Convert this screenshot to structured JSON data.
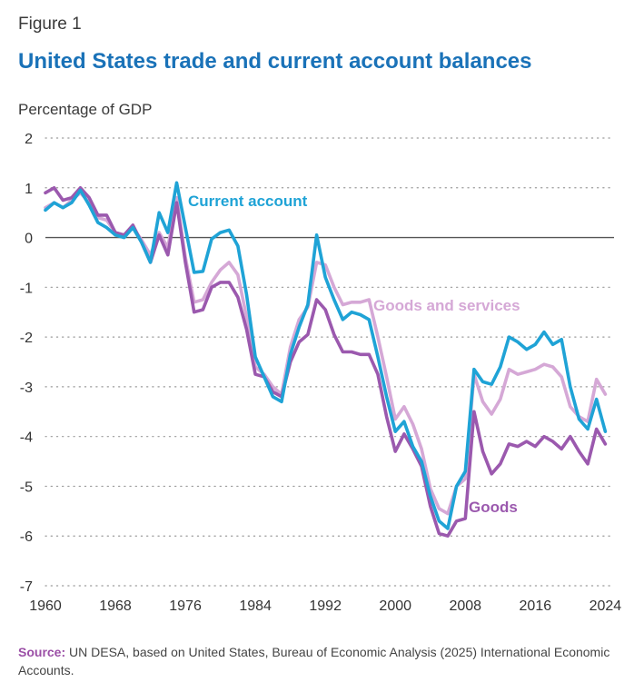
{
  "figure_label": "Figure 1",
  "title": "United States trade and current account balances",
  "unit_label": "Percentage of GDP",
  "source": {
    "key": "Source:",
    "text": " UN DESA, based on United States, Bureau of Economic Analysis (2025) International Economic Accounts."
  },
  "colors": {
    "current_account": "#1fa3d6",
    "goods_and_services": "#d5a8d6",
    "goods": "#9b59ae",
    "title": "#1a72b8",
    "zero_line": "#555555",
    "grid": "#9a9a9a"
  },
  "chart_data": {
    "type": "line",
    "xlim": [
      1960,
      2025
    ],
    "ylim": [
      -7,
      2
    ],
    "grid": "horizontal dotted",
    "x_ticks": [
      1960,
      1968,
      1976,
      1984,
      1992,
      2000,
      2008,
      2016,
      2024
    ],
    "y_ticks": [
      2,
      1,
      0,
      -1,
      -2,
      -3,
      -4,
      -5,
      -6,
      -7
    ],
    "series": [
      {
        "name": "Current account",
        "key": "current_account",
        "x": [
          1960,
          1961,
          1962,
          1963,
          1964,
          1965,
          1966,
          1967,
          1968,
          1969,
          1970,
          1971,
          1972,
          1973,
          1974,
          1975,
          1976,
          1977,
          1978,
          1979,
          1980,
          1981,
          1982,
          1983,
          1984,
          1985,
          1986,
          1987,
          1988,
          1989,
          1990,
          1991,
          1992,
          1993,
          1994,
          1995,
          1996,
          1997,
          1998,
          1999,
          2000,
          2001,
          2002,
          2003,
          2004,
          2005,
          2006,
          2007,
          2008,
          2009,
          2010,
          2011,
          2012,
          2013,
          2014,
          2015,
          2016,
          2017,
          2018,
          2019,
          2020,
          2021,
          2022,
          2023,
          2024
        ],
        "values": [
          0.55,
          0.7,
          0.6,
          0.7,
          0.95,
          0.65,
          0.3,
          0.2,
          0.05,
          0.0,
          0.2,
          -0.1,
          -0.5,
          0.5,
          0.1,
          1.1,
          0.2,
          -0.7,
          -0.68,
          -0.03,
          0.1,
          0.15,
          -0.17,
          -1.15,
          -2.4,
          -2.8,
          -3.2,
          -3.3,
          -2.35,
          -1.8,
          -1.35,
          0.05,
          -0.8,
          -1.25,
          -1.65,
          -1.5,
          -1.55,
          -1.65,
          -2.4,
          -3.2,
          -3.9,
          -3.7,
          -4.2,
          -4.5,
          -5.2,
          -5.7,
          -5.85,
          -5.0,
          -4.7,
          -2.65,
          -2.9,
          -2.95,
          -2.6,
          -2.0,
          -2.1,
          -2.25,
          -2.15,
          -1.9,
          -2.15,
          -2.05,
          -3.0,
          -3.65,
          -3.85,
          -3.25,
          -3.9
        ],
        "label_position": "upper-left, near 1976"
      },
      {
        "name": "Goods and services",
        "key": "goods_and_services",
        "x": [
          1960,
          1961,
          1962,
          1963,
          1964,
          1965,
          1966,
          1967,
          1968,
          1969,
          1970,
          1971,
          1972,
          1973,
          1974,
          1975,
          1976,
          1977,
          1978,
          1979,
          1980,
          1981,
          1982,
          1983,
          1984,
          1985,
          1986,
          1987,
          1988,
          1989,
          1990,
          1991,
          1992,
          1993,
          1994,
          1995,
          1996,
          1997,
          1998,
          1999,
          2000,
          2001,
          2002,
          2003,
          2004,
          2005,
          2006,
          2007,
          2008,
          2009,
          2010,
          2011,
          2012,
          2013,
          2014,
          2015,
          2016,
          2017,
          2018,
          2019,
          2020,
          2021,
          2022,
          2023,
          2024
        ],
        "values": [
          0.6,
          0.7,
          0.6,
          0.75,
          0.9,
          0.7,
          0.4,
          0.35,
          0.1,
          0.05,
          0.2,
          -0.05,
          -0.35,
          0.1,
          -0.2,
          0.8,
          -0.4,
          -1.3,
          -1.25,
          -0.9,
          -0.65,
          -0.5,
          -0.75,
          -1.6,
          -2.6,
          -2.75,
          -3.0,
          -3.15,
          -2.2,
          -1.65,
          -1.4,
          -0.5,
          -0.55,
          -1.0,
          -1.35,
          -1.3,
          -1.3,
          -1.25,
          -2.0,
          -2.8,
          -3.65,
          -3.4,
          -3.75,
          -4.25,
          -5.05,
          -5.45,
          -5.55,
          -5.0,
          -4.85,
          -2.75,
          -3.3,
          -3.55,
          -3.25,
          -2.65,
          -2.75,
          -2.7,
          -2.65,
          -2.55,
          -2.6,
          -2.8,
          -3.4,
          -3.6,
          -3.7,
          -2.85,
          -3.15
        ],
        "label_position": "right, near 1997"
      },
      {
        "name": "Goods",
        "key": "goods",
        "x": [
          1960,
          1961,
          1962,
          1963,
          1964,
          1965,
          1966,
          1967,
          1968,
          1969,
          1970,
          1971,
          1972,
          1973,
          1974,
          1975,
          1976,
          1977,
          1978,
          1979,
          1980,
          1981,
          1982,
          1983,
          1984,
          1985,
          1986,
          1987,
          1988,
          1989,
          1990,
          1991,
          1992,
          1993,
          1994,
          1995,
          1996,
          1997,
          1998,
          1999,
          2000,
          2001,
          2002,
          2003,
          2004,
          2005,
          2006,
          2007,
          2008,
          2009,
          2010,
          2011,
          2012,
          2013,
          2014,
          2015,
          2016,
          2017,
          2018,
          2019,
          2020,
          2021,
          2022,
          2023,
          2024
        ],
        "values": [
          0.9,
          1.0,
          0.75,
          0.8,
          1.0,
          0.8,
          0.45,
          0.45,
          0.1,
          0.05,
          0.25,
          -0.1,
          -0.5,
          0.05,
          -0.35,
          0.7,
          -0.5,
          -1.5,
          -1.45,
          -1.0,
          -0.9,
          -0.9,
          -1.2,
          -1.85,
          -2.75,
          -2.8,
          -3.1,
          -3.2,
          -2.5,
          -2.1,
          -1.95,
          -1.25,
          -1.45,
          -1.95,
          -2.3,
          -2.3,
          -2.35,
          -2.35,
          -2.75,
          -3.6,
          -4.3,
          -3.95,
          -4.25,
          -4.6,
          -5.4,
          -5.95,
          -6.0,
          -5.7,
          -5.65,
          -3.5,
          -4.3,
          -4.75,
          -4.55,
          -4.15,
          -4.2,
          -4.1,
          -4.2,
          -4.0,
          -4.1,
          -4.25,
          -4.0,
          -4.3,
          -4.55,
          -3.85,
          -4.15
        ],
        "label_position": "lower, near 2009"
      }
    ]
  }
}
